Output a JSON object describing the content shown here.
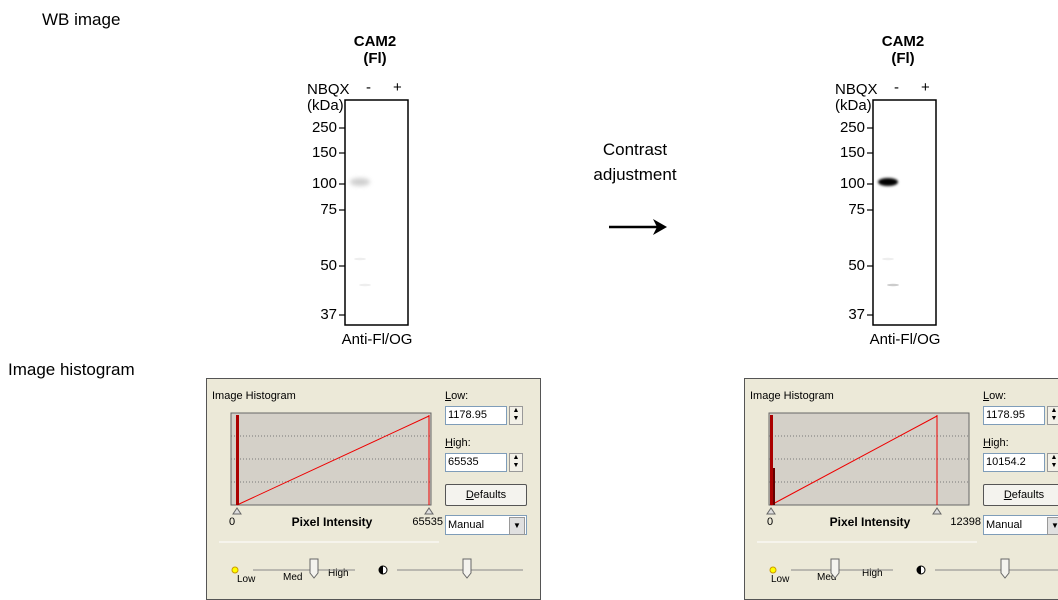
{
  "labels": {
    "wb_image": "WB image",
    "image_histogram": "Image histogram",
    "contrast": [
      "Contrast",
      "adjustment"
    ]
  },
  "blots": [
    {
      "title": "CAM2",
      "subtitle": "(Fl)",
      "treatment": "NBQX",
      "lanes": [
        "-",
        "+"
      ],
      "unit": "(kDa)",
      "markers": [
        "250",
        "150",
        "100",
        "75",
        "50",
        "37"
      ],
      "antibody": "Anti-Fl/OG"
    },
    {
      "title": "CAM2",
      "subtitle": "(Fl)",
      "treatment": "NBQX",
      "lanes": [
        "-",
        "+"
      ],
      "unit": "(kDa)",
      "markers": [
        "250",
        "150",
        "100",
        "75",
        "50",
        "37"
      ],
      "antibody": "Anti-Fl/OG"
    }
  ],
  "histograms": [
    {
      "panel_title": "Image Histogram",
      "low_label": "Low:",
      "low": "1178.95",
      "high_label": "High:",
      "high": "65535",
      "defaults": "Defaults",
      "axis_min": "0",
      "axis_label": "Pixel Intensity",
      "axis_max": "65535",
      "mode": "Manual",
      "slider_labels": [
        "Low",
        "Med",
        "High"
      ]
    },
    {
      "panel_title": "Image Histogram",
      "low_label": "Low:",
      "low": "1178.95",
      "high_label": "High:",
      "high": "10154.2",
      "defaults": "Defaults",
      "axis_min": "0",
      "axis_label": "Pixel Intensity",
      "axis_max": "12398",
      "mode": "Manual",
      "slider_labels": [
        "Low",
        "Med",
        "High"
      ]
    }
  ]
}
